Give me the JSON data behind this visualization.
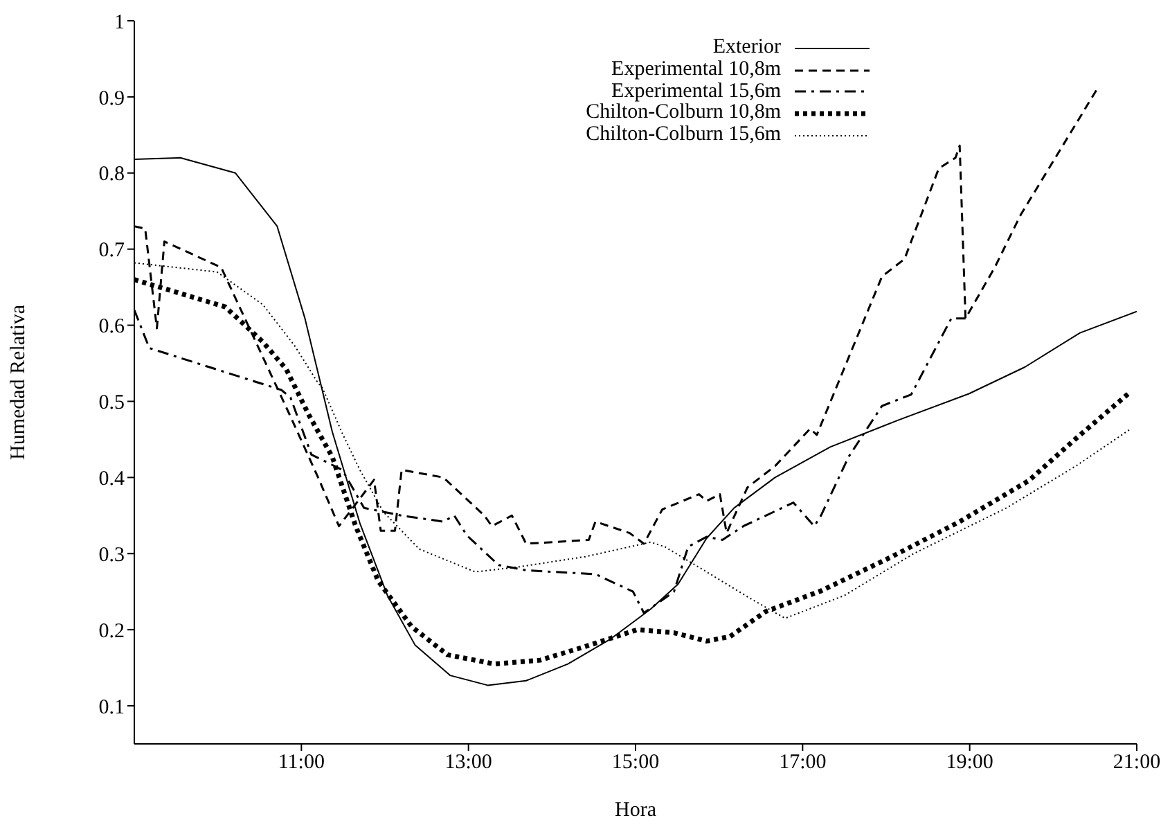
{
  "chart_data": {
    "type": "line",
    "xlabel": "Hora",
    "ylabel": "Humedad Relativa",
    "xlim": [
      9,
      21
    ],
    "xticks": [
      {
        "value": 11,
        "label": "11:00"
      },
      {
        "value": 13,
        "label": "13:00"
      },
      {
        "value": 15,
        "label": "15:00"
      },
      {
        "value": 17,
        "label": "17:00"
      },
      {
        "value": 19,
        "label": "19:00"
      },
      {
        "value": 21,
        "label": "21:00"
      }
    ],
    "ylim": [
      0.05,
      1
    ],
    "yticks": [
      0.1,
      0.2,
      0.3,
      0.4,
      0.5,
      0.6,
      0.7,
      0.8,
      0.9,
      1
    ],
    "grid": false,
    "legend": "top right",
    "marker": "none",
    "series": [
      {
        "name": "Exterior",
        "color": "#000000",
        "line_style": "solid",
        "x": [
          9.0,
          9.55,
          10.21,
          10.71,
          11.04,
          11.37,
          11.7,
          12.03,
          12.36,
          12.78,
          13.23,
          13.69,
          14.19,
          14.69,
          15.18,
          15.51,
          15.85,
          16.18,
          16.67,
          17.33,
          18.16,
          18.99,
          19.66,
          20.32,
          21.0
        ],
        "values": [
          0.818,
          0.82,
          0.8,
          0.73,
          0.61,
          0.46,
          0.34,
          0.245,
          0.18,
          0.14,
          0.127,
          0.133,
          0.155,
          0.187,
          0.227,
          0.26,
          0.32,
          0.36,
          0.4,
          0.44,
          0.476,
          0.51,
          0.545,
          0.59,
          0.618
        ]
      },
      {
        "name": "Experimental 10,8m",
        "color": "#000000",
        "line_style": "dashed",
        "x": [
          9.0,
          9.13,
          9.27,
          9.36,
          10.04,
          10.87,
          11.2,
          11.45,
          11.87,
          11.95,
          12.12,
          12.2,
          12.7,
          13.19,
          13.28,
          13.52,
          13.69,
          14.44,
          14.52,
          14.93,
          15.1,
          15.32,
          15.76,
          15.85,
          16.01,
          16.09,
          16.34,
          16.67,
          17.09,
          17.17,
          17.95,
          18.22,
          18.63,
          18.83,
          18.88,
          18.95,
          19.3,
          19.61,
          20.54
        ],
        "values": [
          0.73,
          0.727,
          0.596,
          0.71,
          0.676,
          0.48,
          0.4,
          0.336,
          0.397,
          0.33,
          0.33,
          0.41,
          0.4,
          0.35,
          0.336,
          0.35,
          0.313,
          0.318,
          0.342,
          0.327,
          0.313,
          0.358,
          0.378,
          0.369,
          0.378,
          0.327,
          0.387,
          0.415,
          0.464,
          0.456,
          0.664,
          0.687,
          0.806,
          0.82,
          0.836,
          0.609,
          0.676,
          0.745,
          0.913
        ]
      },
      {
        "name": "Experimental 15,6m",
        "color": "#000000",
        "line_style": "dashdot",
        "x": [
          9.0,
          9.18,
          10.76,
          10.87,
          11.12,
          11.49,
          11.75,
          12.2,
          12.7,
          12.83,
          12.98,
          13.36,
          13.69,
          14.52,
          14.97,
          15.1,
          15.46,
          15.63,
          15.85,
          16.04,
          16.29,
          16.89,
          17.14,
          17.22,
          17.55,
          17.95,
          18.3,
          18.78,
          18.95
        ],
        "values": [
          0.62,
          0.57,
          0.515,
          0.505,
          0.43,
          0.41,
          0.36,
          0.35,
          0.342,
          0.35,
          0.324,
          0.285,
          0.278,
          0.273,
          0.25,
          0.222,
          0.25,
          0.309,
          0.322,
          0.318,
          0.336,
          0.367,
          0.336,
          0.35,
          0.427,
          0.494,
          0.509,
          0.609,
          0.609
        ]
      },
      {
        "name": "Chilton-Colburn 10,8m",
        "color": "#000000",
        "line_style": "dotted",
        "x": [
          9.0,
          10.09,
          10.54,
          10.82,
          11.09,
          11.37,
          11.65,
          11.92,
          12.32,
          12.75,
          13.31,
          13.86,
          14.4,
          15.02,
          15.46,
          15.85,
          16.13,
          16.56,
          17.22,
          18.05,
          18.88,
          19.71,
          20.27,
          20.93
        ],
        "values": [
          0.66,
          0.624,
          0.578,
          0.542,
          0.482,
          0.427,
          0.336,
          0.264,
          0.204,
          0.167,
          0.155,
          0.16,
          0.178,
          0.2,
          0.196,
          0.185,
          0.191,
          0.224,
          0.251,
          0.295,
          0.342,
          0.396,
          0.451,
          0.513
        ]
      },
      {
        "name": "Chilton-Colburn 15,6m",
        "color": "#000000",
        "line_style": "dotted",
        "x": [
          9.0,
          9.99,
          10.54,
          10.92,
          11.2,
          11.25,
          11.49,
          11.7,
          11.98,
          12.41,
          13.08,
          13.57,
          14.4,
          15.18,
          15.35,
          15.85,
          16.39,
          16.79,
          17.5,
          18.33,
          19.44,
          20.27,
          20.93
        ],
        "values": [
          0.682,
          0.67,
          0.627,
          0.573,
          0.524,
          0.518,
          0.458,
          0.41,
          0.355,
          0.306,
          0.276,
          0.282,
          0.296,
          0.315,
          0.309,
          0.276,
          0.24,
          0.215,
          0.245,
          0.3,
          0.36,
          0.415,
          0.464
        ]
      }
    ]
  }
}
